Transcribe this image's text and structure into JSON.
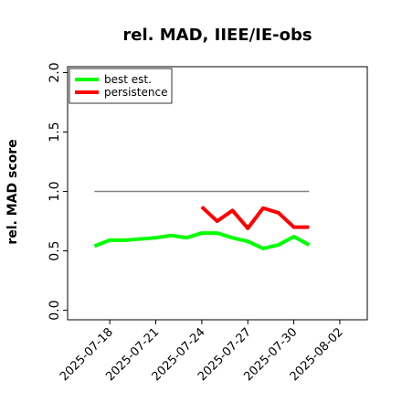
{
  "chart_data": {
    "type": "line",
    "title": "rel. MAD, IIEE/IE-obs",
    "ylabel": "rel. MAD score",
    "x": [
      "2025-07-17",
      "2025-07-18",
      "2025-07-19",
      "2025-07-20",
      "2025-07-21",
      "2025-07-22",
      "2025-07-23",
      "2025-07-24",
      "2025-07-25",
      "2025-07-26",
      "2025-07-27",
      "2025-07-28",
      "2025-07-29",
      "2025-07-30",
      "2025-07-31"
    ],
    "series": [
      {
        "name": "best est.",
        "color": "#00ff00",
        "values": [
          0.54,
          0.59,
          0.59,
          0.6,
          0.61,
          0.63,
          0.61,
          0.65,
          0.65,
          0.61,
          0.58,
          0.52,
          0.55,
          0.62,
          0.55
        ]
      },
      {
        "name": "persistence",
        "color": "#ff0000",
        "values": [
          null,
          null,
          null,
          null,
          null,
          null,
          null,
          0.87,
          0.75,
          0.84,
          0.69,
          0.86,
          0.82,
          0.7,
          0.7
        ]
      }
    ],
    "hline": {
      "y": 1.0,
      "xlim": [
        "2025-07-17",
        "2025-07-31"
      ],
      "color": "#808080"
    },
    "xlim": [
      "2025-07-15T06:00",
      "2025-08-03T19:00"
    ],
    "xticks": [
      "2025-07-18",
      "2025-07-21",
      "2025-07-24",
      "2025-07-27",
      "2025-07-30",
      "2025-08-02"
    ],
    "ylim": [
      -0.08,
      2.05
    ],
    "yticks": [
      {
        "value": 0,
        "label": "0.0"
      },
      {
        "value": 0.5,
        "label": "0.5"
      },
      {
        "value": 1,
        "label": "1.0"
      },
      {
        "value": 1.5,
        "label": "1.5"
      },
      {
        "value": 2,
        "label": "2.0"
      }
    ],
    "legend": "upper left"
  }
}
